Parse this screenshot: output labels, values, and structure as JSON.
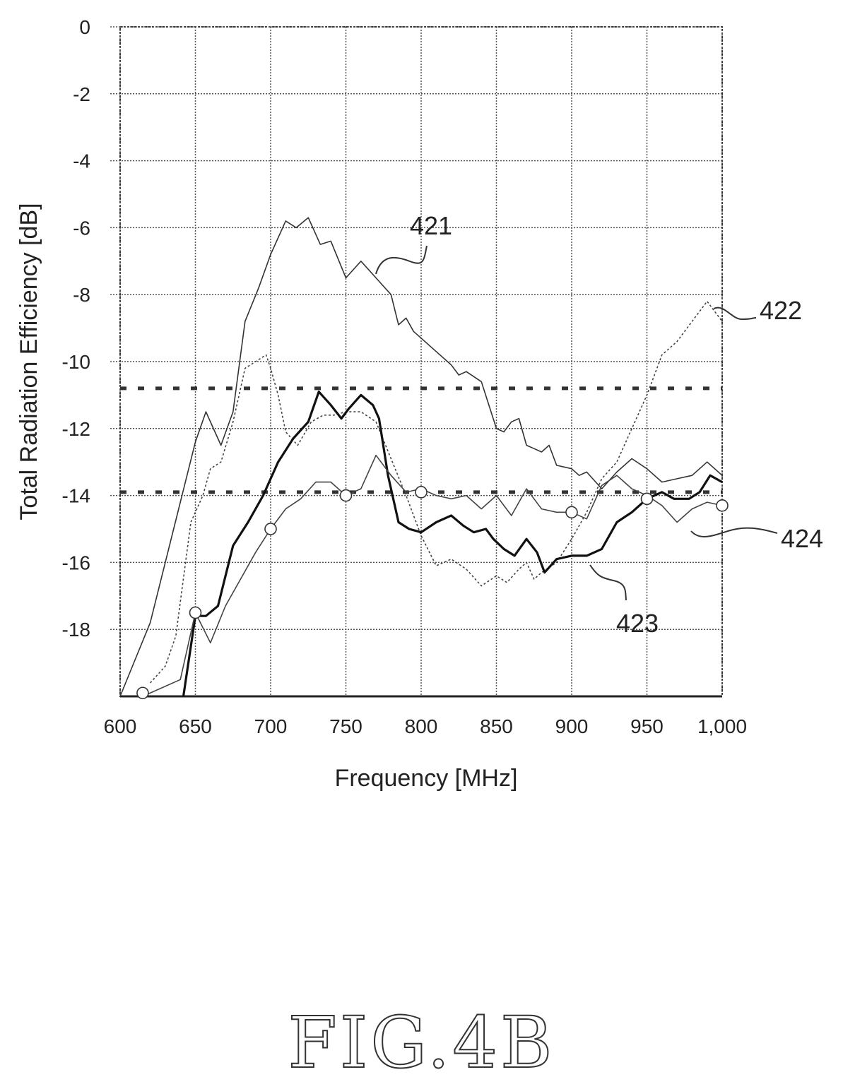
{
  "figure_label": "FIG.4B",
  "chart_data": {
    "type": "line",
    "title": "",
    "xlabel": "Frequency [MHz]",
    "ylabel": "Total Radiation Efficiency [dB]",
    "xlim": [
      600,
      1000
    ],
    "ylim": [
      -20,
      0
    ],
    "xticks": [
      600,
      650,
      700,
      750,
      800,
      850,
      900,
      950,
      1000
    ],
    "xtick_labels": [
      "600",
      "650",
      "700",
      "750",
      "800",
      "850",
      "900",
      "950",
      "1,000"
    ],
    "yticks": [
      0,
      -2,
      -4,
      -6,
      -8,
      -10,
      -12,
      -14,
      -16,
      -18
    ],
    "ytick_labels": [
      "0",
      "-2",
      "-4",
      "-6",
      "-8",
      "-10",
      "-12",
      "-14",
      "-16",
      "-18"
    ],
    "grid": true,
    "reference_lines": [
      -10.8,
      -13.9
    ],
    "series": [
      {
        "name": "421",
        "style": "thin-solid",
        "points": [
          [
            600,
            -20
          ],
          [
            620,
            -17.8
          ],
          [
            630,
            -16
          ],
          [
            640,
            -14.2
          ],
          [
            650,
            -12.4
          ],
          [
            657,
            -11.5
          ],
          [
            667,
            -12.5
          ],
          [
            675,
            -11.5
          ],
          [
            683,
            -8.8
          ],
          [
            692,
            -7.8
          ],
          [
            700,
            -6.8
          ],
          [
            710,
            -5.8
          ],
          [
            717,
            -6
          ],
          [
            725,
            -5.7
          ],
          [
            733,
            -6.5
          ],
          [
            740,
            -6.4
          ],
          [
            750,
            -7.5
          ],
          [
            760,
            -7
          ],
          [
            770,
            -7.5
          ],
          [
            780,
            -8
          ],
          [
            785,
            -8.9
          ],
          [
            790,
            -8.7
          ],
          [
            795,
            -9.1
          ],
          [
            800,
            -9.3
          ],
          [
            810,
            -9.7
          ],
          [
            820,
            -10.1
          ],
          [
            825,
            -10.4
          ],
          [
            830,
            -10.3
          ],
          [
            840,
            -10.6
          ],
          [
            850,
            -12
          ],
          [
            855,
            -12.1
          ],
          [
            860,
            -11.8
          ],
          [
            865,
            -11.7
          ],
          [
            870,
            -12.5
          ],
          [
            875,
            -12.6
          ],
          [
            880,
            -12.7
          ],
          [
            885,
            -12.5
          ],
          [
            890,
            -13.1
          ],
          [
            900,
            -13.2
          ],
          [
            905,
            -13.4
          ],
          [
            910,
            -13.3
          ],
          [
            920,
            -13.8
          ],
          [
            930,
            -13.3
          ],
          [
            940,
            -12.9
          ],
          [
            950,
            -13.2
          ],
          [
            960,
            -13.6
          ],
          [
            970,
            -13.5
          ],
          [
            980,
            -13.4
          ],
          [
            990,
            -13
          ],
          [
            1000,
            -13.4
          ]
        ]
      },
      {
        "name": "422",
        "style": "dotted",
        "points": [
          [
            620,
            -19.6
          ],
          [
            630,
            -19.1
          ],
          [
            637,
            -18.2
          ],
          [
            647,
            -14.8
          ],
          [
            655,
            -14
          ],
          [
            660,
            -13.2
          ],
          [
            667,
            -13
          ],
          [
            675,
            -11.8
          ],
          [
            683,
            -10.2
          ],
          [
            690,
            -10
          ],
          [
            697,
            -9.8
          ],
          [
            700,
            -10.2
          ],
          [
            705,
            -11
          ],
          [
            710,
            -12.1
          ],
          [
            718,
            -12.5
          ],
          [
            727,
            -11.8
          ],
          [
            735,
            -11.6
          ],
          [
            742,
            -11.6
          ],
          [
            750,
            -11.5
          ],
          [
            760,
            -11.5
          ],
          [
            770,
            -11.8
          ],
          [
            780,
            -12.9
          ],
          [
            790,
            -14
          ],
          [
            800,
            -15.2
          ],
          [
            810,
            -16.1
          ],
          [
            820,
            -15.9
          ],
          [
            830,
            -16.2
          ],
          [
            840,
            -16.7
          ],
          [
            850,
            -16.4
          ],
          [
            857,
            -16.6
          ],
          [
            865,
            -16.2
          ],
          [
            870,
            -16
          ],
          [
            875,
            -16.5
          ],
          [
            880,
            -16.3
          ],
          [
            890,
            -16
          ],
          [
            900,
            -15.3
          ],
          [
            910,
            -14.5
          ],
          [
            920,
            -13.5
          ],
          [
            930,
            -13
          ],
          [
            940,
            -12
          ],
          [
            950,
            -11
          ],
          [
            960,
            -9.8
          ],
          [
            970,
            -9.4
          ],
          [
            980,
            -8.8
          ],
          [
            990,
            -8.2
          ],
          [
            1000,
            -8.8
          ]
        ]
      },
      {
        "name": "423",
        "style": "bold-solid",
        "points": [
          [
            642,
            -20
          ],
          [
            650,
            -17.6
          ],
          [
            657,
            -17.6
          ],
          [
            665,
            -17.3
          ],
          [
            675,
            -15.5
          ],
          [
            685,
            -14.8
          ],
          [
            695,
            -14
          ],
          [
            705,
            -13
          ],
          [
            715,
            -12.3
          ],
          [
            725,
            -11.8
          ],
          [
            732,
            -10.9
          ],
          [
            740,
            -11.3
          ],
          [
            747,
            -11.7
          ],
          [
            752,
            -11.4
          ],
          [
            760,
            -11
          ],
          [
            768,
            -11.3
          ],
          [
            772,
            -11.7
          ],
          [
            778,
            -13.4
          ],
          [
            785,
            -14.8
          ],
          [
            792,
            -15
          ],
          [
            800,
            -15.1
          ],
          [
            810,
            -14.8
          ],
          [
            820,
            -14.6
          ],
          [
            828,
            -14.9
          ],
          [
            835,
            -15.1
          ],
          [
            843,
            -15
          ],
          [
            848,
            -15.3
          ],
          [
            855,
            -15.6
          ],
          [
            862,
            -15.8
          ],
          [
            870,
            -15.3
          ],
          [
            877,
            -15.7
          ],
          [
            882,
            -16.3
          ],
          [
            890,
            -15.9
          ],
          [
            900,
            -15.8
          ],
          [
            910,
            -15.8
          ],
          [
            920,
            -15.6
          ],
          [
            930,
            -14.8
          ],
          [
            940,
            -14.5
          ],
          [
            950,
            -14.1
          ],
          [
            960,
            -13.9
          ],
          [
            968,
            -14.1
          ],
          [
            978,
            -14.1
          ],
          [
            985,
            -13.9
          ],
          [
            992,
            -13.4
          ],
          [
            1000,
            -13.6
          ]
        ]
      },
      {
        "name": "424",
        "style": "thin-solid-circle-markers",
        "points": [
          [
            615,
            -20
          ],
          [
            640,
            -19.5
          ],
          [
            650,
            -17.5
          ],
          [
            660,
            -18.4
          ],
          [
            670,
            -17.3
          ],
          [
            680,
            -16.5
          ],
          [
            690,
            -15.7
          ],
          [
            700,
            -15
          ],
          [
            710,
            -14.4
          ],
          [
            720,
            -14.1
          ],
          [
            730,
            -13.6
          ],
          [
            740,
            -13.6
          ],
          [
            750,
            -14
          ],
          [
            760,
            -13.8
          ],
          [
            770,
            -12.8
          ],
          [
            780,
            -13.4
          ],
          [
            790,
            -13.9
          ],
          [
            800,
            -13.8
          ],
          [
            810,
            -14
          ],
          [
            820,
            -14.1
          ],
          [
            830,
            -14
          ],
          [
            840,
            -14.4
          ],
          [
            850,
            -14
          ],
          [
            860,
            -14.6
          ],
          [
            870,
            -13.8
          ],
          [
            880,
            -14.4
          ],
          [
            890,
            -14.5
          ],
          [
            900,
            -14.5
          ],
          [
            910,
            -14.7
          ],
          [
            920,
            -13.7
          ],
          [
            930,
            -13.4
          ],
          [
            940,
            -13.8
          ],
          [
            950,
            -14
          ],
          [
            960,
            -14.3
          ],
          [
            970,
            -14.8
          ],
          [
            980,
            -14.4
          ],
          [
            990,
            -14.2
          ],
          [
            1000,
            -14.3
          ]
        ],
        "markers": [
          [
            615,
            -19.9
          ],
          [
            650,
            -17.5
          ],
          [
            700,
            -15
          ],
          [
            750,
            -14
          ],
          [
            800,
            -13.9
          ],
          [
            900,
            -14.5
          ],
          [
            950,
            -14.1
          ],
          [
            1000,
            -14.3
          ]
        ]
      }
    ]
  }
}
